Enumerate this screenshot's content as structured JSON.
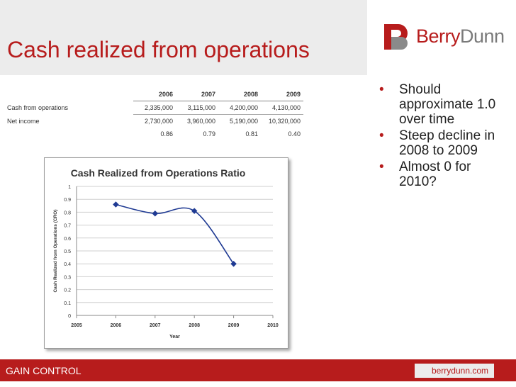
{
  "slide": {
    "title": "Cash realized from operations",
    "logo": {
      "berry": "Berry",
      "dunn": "Dunn",
      "brand_color": "#b71c1c"
    },
    "bullets": [
      "Should approximate 1.0 over time",
      "Steep decline in 2008 to 2009",
      "Almost 0 for 2010?"
    ],
    "footer": {
      "left": "GAIN CONTROL",
      "right": "berrydunn.com"
    }
  },
  "table": {
    "years": [
      "2006",
      "2007",
      "2008",
      "2009"
    ],
    "rows": [
      {
        "label": "Cash from operations",
        "values": [
          "2,335,000",
          "3,115,000",
          "4,200,000",
          "4,130,000"
        ]
      },
      {
        "label": "Net income",
        "values": [
          "2,730,000",
          "3,960,000",
          "5,190,000",
          "10,320,000"
        ]
      }
    ],
    "ratios": [
      "0.86",
      "0.79",
      "0.81",
      "0.40"
    ]
  },
  "chart_data": {
    "type": "line",
    "title": "Cash Realized from Operations Ratio",
    "xlabel": "Year",
    "ylabel": "Cash Realized from Operations (CRO)",
    "x": [
      2006,
      2007,
      2008,
      2009
    ],
    "series": [
      {
        "values": [
          0.86,
          0.79,
          0.81,
          0.4
        ]
      }
    ],
    "xlim": [
      2005,
      2010
    ],
    "ylim": [
      0,
      1
    ],
    "xticks": [
      "2005",
      "2006",
      "2007",
      "2008",
      "2009",
      "2010"
    ],
    "yticks": [
      "0",
      "0.1",
      "0.2",
      "0.3",
      "0.4",
      "0.5",
      "0.6",
      "0.7",
      "0.8",
      "0.9",
      "1"
    ],
    "grid": true,
    "line_color": "#1f3a93",
    "smooth": true
  }
}
